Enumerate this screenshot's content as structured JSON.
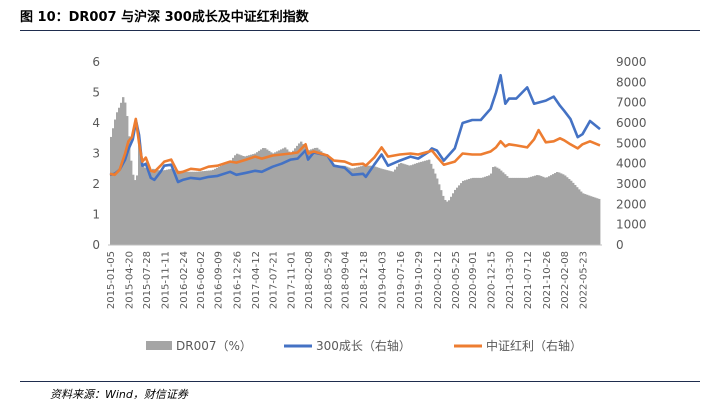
{
  "header": {
    "title": "图 10：DR007 与沪深 300成长及中证红利指数"
  },
  "footer": {
    "source": "资料来源：Wind，财信证券"
  },
  "chart_data": {
    "type": "bar+line",
    "title": "",
    "xlabel": "",
    "ylabel": "",
    "left_axis": {
      "min": 0,
      "max": 6,
      "ticks": [
        "0",
        "1",
        "2",
        "3",
        "4",
        "5",
        "6"
      ]
    },
    "right_axis": {
      "min": 0,
      "max": 9000,
      "ticks": [
        "0",
        "1000",
        "2000",
        "3000",
        "4000",
        "5000",
        "6000",
        "7000",
        "8000",
        "9000"
      ]
    },
    "x_range": [
      "2015-01-05",
      "2022-08-31"
    ],
    "x_ticks": [
      "2015-01-05",
      "2015-04-20",
      "2015-07-28",
      "2015-11-11",
      "2016-02-24",
      "2016-06-02",
      "2016-09-09",
      "2016-12-26",
      "2017-04-12",
      "2017-07-21",
      "2017-11-01",
      "2018-02-08",
      "2018-05-29",
      "2018-09-04",
      "2018-12-18",
      "2019-04-03",
      "2019-07-16",
      "2019-10-29",
      "2020-02-12",
      "2020-05-25",
      "2020-09-01",
      "2020-12-15",
      "2021-03-30",
      "2021-07-12",
      "2021-10-26",
      "2022-02-08",
      "2022-05-23"
    ],
    "legend_position": "bottom",
    "gridlines": false,
    "series": [
      {
        "name": "DR007（%）",
        "type": "bar",
        "axis": "left",
        "color": "#a5a5a5",
        "points": [
          [
            "2015-01-05",
            3.4
          ],
          [
            "2015-02-10",
            4.3
          ],
          [
            "2015-03-05",
            4.6
          ],
          [
            "2015-03-20",
            4.85
          ],
          [
            "2015-04-05",
            4.6
          ],
          [
            "2015-04-20",
            3.8
          ],
          [
            "2015-05-10",
            2.4
          ],
          [
            "2015-06-05",
            2.0
          ],
          [
            "2015-06-20",
            3.4
          ],
          [
            "2015-07-10",
            2.6
          ],
          [
            "2015-08-10",
            2.45
          ],
          [
            "2015-09-10",
            2.5
          ],
          [
            "2015-10-10",
            2.45
          ],
          [
            "2015-11-11",
            2.45
          ],
          [
            "2015-12-20",
            2.5
          ],
          [
            "2016-02-24",
            2.4
          ],
          [
            "2016-05-10",
            2.4
          ],
          [
            "2016-08-10",
            2.45
          ],
          [
            "2016-09-30",
            2.6
          ],
          [
            "2016-11-15",
            2.7
          ],
          [
            "2016-12-26",
            3.0
          ],
          [
            "2017-02-10",
            2.9
          ],
          [
            "2017-04-12",
            3.0
          ],
          [
            "2017-06-01",
            3.2
          ],
          [
            "2017-07-21",
            3.0
          ],
          [
            "2017-09-30",
            3.2
          ],
          [
            "2017-11-01",
            3.0
          ],
          [
            "2017-12-28",
            3.4
          ],
          [
            "2018-02-08",
            3.1
          ],
          [
            "2018-03-28",
            3.2
          ],
          [
            "2018-05-29",
            2.9
          ],
          [
            "2018-07-10",
            2.6
          ],
          [
            "2018-09-04",
            2.6
          ],
          [
            "2018-10-15",
            2.5
          ],
          [
            "2018-12-18",
            2.6
          ],
          [
            "2019-02-10",
            2.6
          ],
          [
            "2019-04-03",
            2.5
          ],
          [
            "2019-06-10",
            2.4
          ],
          [
            "2019-07-16",
            2.7
          ],
          [
            "2019-09-10",
            2.6
          ],
          [
            "2019-10-29",
            2.7
          ],
          [
            "2019-12-31",
            2.8
          ],
          [
            "2020-02-12",
            2.2
          ],
          [
            "2020-03-25",
            1.5
          ],
          [
            "2020-04-15",
            1.4
          ],
          [
            "2020-05-25",
            1.8
          ],
          [
            "2020-07-10",
            2.1
          ],
          [
            "2020-09-01",
            2.2
          ],
          [
            "2020-10-25",
            2.2
          ],
          [
            "2020-12-15",
            2.3
          ],
          [
            "2020-12-31",
            2.6
          ],
          [
            "2021-02-01",
            2.5
          ],
          [
            "2021-03-30",
            2.2
          ],
          [
            "2021-05-15",
            2.2
          ],
          [
            "2021-07-12",
            2.2
          ],
          [
            "2021-09-10",
            2.3
          ],
          [
            "2021-10-26",
            2.2
          ],
          [
            "2021-12-31",
            2.4
          ],
          [
            "2022-02-08",
            2.3
          ],
          [
            "2022-03-20",
            2.1
          ],
          [
            "2022-05-23",
            1.7
          ],
          [
            "2022-07-10",
            1.6
          ],
          [
            "2022-08-31",
            1.5
          ]
        ]
      },
      {
        "name": "300成长（右轴）",
        "type": "line",
        "axis": "right",
        "color": "#4472c4",
        "points": [
          [
            "2015-01-05",
            3450
          ],
          [
            "2015-02-01",
            3500
          ],
          [
            "2015-03-01",
            3700
          ],
          [
            "2015-04-01",
            4200
          ],
          [
            "2015-04-20",
            4700
          ],
          [
            "2015-05-15",
            5200
          ],
          [
            "2015-06-03",
            6100
          ],
          [
            "2015-06-20",
            5400
          ],
          [
            "2015-07-08",
            3900
          ],
          [
            "2015-07-28",
            4000
          ],
          [
            "2015-08-26",
            3300
          ],
          [
            "2015-09-15",
            3200
          ],
          [
            "2015-10-20",
            3600
          ],
          [
            "2015-11-11",
            3900
          ],
          [
            "2015-12-20",
            3950
          ],
          [
            "2016-01-28",
            3100
          ],
          [
            "2016-02-24",
            3200
          ],
          [
            "2016-04-10",
            3300
          ],
          [
            "2016-06-02",
            3250
          ],
          [
            "2016-07-20",
            3350
          ],
          [
            "2016-09-09",
            3400
          ],
          [
            "2016-11-20",
            3600
          ],
          [
            "2016-12-26",
            3450
          ],
          [
            "2017-02-20",
            3550
          ],
          [
            "2017-04-12",
            3650
          ],
          [
            "2017-05-20",
            3600
          ],
          [
            "2017-07-21",
            3850
          ],
          [
            "2017-09-10",
            4000
          ],
          [
            "2017-11-01",
            4200
          ],
          [
            "2017-12-10",
            4250
          ],
          [
            "2018-01-25",
            4650
          ],
          [
            "2018-02-08",
            4200
          ],
          [
            "2018-03-12",
            4550
          ],
          [
            "2018-05-29",
            4400
          ],
          [
            "2018-07-05",
            3900
          ],
          [
            "2018-09-04",
            3800
          ],
          [
            "2018-10-18",
            3450
          ],
          [
            "2018-12-18",
            3500
          ],
          [
            "2019-01-03",
            3350
          ],
          [
            "2019-02-20",
            3950
          ],
          [
            "2019-04-03",
            4450
          ],
          [
            "2019-05-10",
            3900
          ],
          [
            "2019-07-16",
            4150
          ],
          [
            "2019-09-15",
            4350
          ],
          [
            "2019-10-29",
            4250
          ],
          [
            "2019-12-31",
            4600
          ],
          [
            "2020-01-15",
            4750
          ],
          [
            "2020-02-12",
            4650
          ],
          [
            "2020-03-23",
            4150
          ],
          [
            "2020-05-25",
            4750
          ],
          [
            "2020-07-08",
            6000
          ],
          [
            "2020-09-01",
            6150
          ],
          [
            "2020-10-20",
            6150
          ],
          [
            "2020-12-15",
            6700
          ],
          [
            "2021-01-15",
            7500
          ],
          [
            "2021-02-10",
            8350
          ],
          [
            "2021-03-09",
            6950
          ],
          [
            "2021-03-30",
            7200
          ],
          [
            "2021-05-10",
            7200
          ],
          [
            "2021-07-12",
            7750
          ],
          [
            "2021-08-20",
            6950
          ],
          [
            "2021-10-26",
            7100
          ],
          [
            "2021-12-10",
            7300
          ],
          [
            "2022-01-15",
            6850
          ],
          [
            "2022-02-08",
            6600
          ],
          [
            "2022-03-15",
            6200
          ],
          [
            "2022-04-26",
            5300
          ],
          [
            "2022-05-23",
            5450
          ],
          [
            "2022-07-05",
            6100
          ],
          [
            "2022-08-31",
            5700
          ]
        ]
      },
      {
        "name": "中证红利（右轴）",
        "type": "line",
        "axis": "right",
        "color": "#ed7d31",
        "points": [
          [
            "2015-01-05",
            3500
          ],
          [
            "2015-02-01",
            3450
          ],
          [
            "2015-03-01",
            3700
          ],
          [
            "2015-04-01",
            4500
          ],
          [
            "2015-04-20",
            5100
          ],
          [
            "2015-05-10",
            5300
          ],
          [
            "2015-06-01",
            6200
          ],
          [
            "2015-06-20",
            5000
          ],
          [
            "2015-07-08",
            4100
          ],
          [
            "2015-07-28",
            4300
          ],
          [
            "2015-08-26",
            3650
          ],
          [
            "2015-09-15",
            3600
          ],
          [
            "2015-10-20",
            3900
          ],
          [
            "2015-11-11",
            4100
          ],
          [
            "2015-12-20",
            4200
          ],
          [
            "2016-01-28",
            3550
          ],
          [
            "2016-02-24",
            3600
          ],
          [
            "2016-04-10",
            3750
          ],
          [
            "2016-06-02",
            3700
          ],
          [
            "2016-07-20",
            3850
          ],
          [
            "2016-09-09",
            3900
          ],
          [
            "2016-11-20",
            4100
          ],
          [
            "2016-12-26",
            4050
          ],
          [
            "2017-02-20",
            4200
          ],
          [
            "2017-04-12",
            4350
          ],
          [
            "2017-05-20",
            4250
          ],
          [
            "2017-07-21",
            4400
          ],
          [
            "2017-09-10",
            4450
          ],
          [
            "2017-11-01",
            4500
          ],
          [
            "2017-12-10",
            4550
          ],
          [
            "2018-01-25",
            4950
          ],
          [
            "2018-02-08",
            4500
          ],
          [
            "2018-03-12",
            4600
          ],
          [
            "2018-05-29",
            4400
          ],
          [
            "2018-07-05",
            4150
          ],
          [
            "2018-09-04",
            4100
          ],
          [
            "2018-10-18",
            3950
          ],
          [
            "2018-12-18",
            4000
          ],
          [
            "2019-01-03",
            3900
          ],
          [
            "2019-02-20",
            4300
          ],
          [
            "2019-04-03",
            4800
          ],
          [
            "2019-05-10",
            4350
          ],
          [
            "2019-07-16",
            4450
          ],
          [
            "2019-09-15",
            4500
          ],
          [
            "2019-10-29",
            4450
          ],
          [
            "2019-12-31",
            4600
          ],
          [
            "2020-01-15",
            4650
          ],
          [
            "2020-02-12",
            4350
          ],
          [
            "2020-03-23",
            3950
          ],
          [
            "2020-05-25",
            4100
          ],
          [
            "2020-07-08",
            4500
          ],
          [
            "2020-09-01",
            4450
          ],
          [
            "2020-10-20",
            4450
          ],
          [
            "2020-12-15",
            4600
          ],
          [
            "2021-01-15",
            4800
          ],
          [
            "2021-02-10",
            5100
          ],
          [
            "2021-03-09",
            4850
          ],
          [
            "2021-03-30",
            4950
          ],
          [
            "2021-05-10",
            4900
          ],
          [
            "2021-07-12",
            4800
          ],
          [
            "2021-08-20",
            5200
          ],
          [
            "2021-09-15",
            5650
          ],
          [
            "2021-10-26",
            5050
          ],
          [
            "2021-12-10",
            5100
          ],
          [
            "2022-01-15",
            5250
          ],
          [
            "2022-02-08",
            5150
          ],
          [
            "2022-03-15",
            4950
          ],
          [
            "2022-04-26",
            4750
          ],
          [
            "2022-05-23",
            4950
          ],
          [
            "2022-07-05",
            5100
          ],
          [
            "2022-08-31",
            4900
          ]
        ]
      }
    ]
  }
}
